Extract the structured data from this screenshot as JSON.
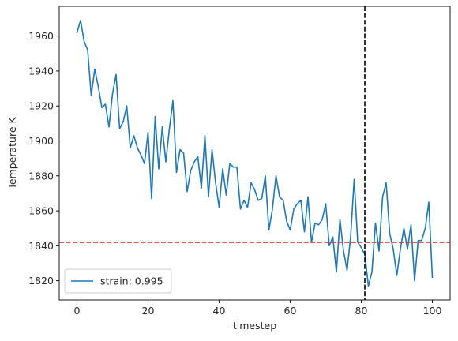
{
  "chart_data": {
    "type": "line",
    "xlabel": "timestep",
    "ylabel": "Temperature K",
    "xlim": [
      -5,
      105
    ],
    "ylim": [
      1809,
      1977
    ],
    "x_ticks": [
      0,
      20,
      40,
      60,
      80,
      100
    ],
    "y_ticks": [
      1820,
      1840,
      1860,
      1880,
      1900,
      1920,
      1940,
      1960
    ],
    "grid": false,
    "legend_position": "lower-left",
    "series": [
      {
        "name": "strain: 0.995",
        "color": "#1f77b4",
        "x": [
          0,
          1,
          2,
          3,
          4,
          5,
          6,
          7,
          8,
          9,
          10,
          11,
          12,
          13,
          14,
          15,
          16,
          17,
          18,
          19,
          20,
          21,
          22,
          23,
          24,
          25,
          26,
          27,
          28,
          29,
          30,
          31,
          32,
          33,
          34,
          35,
          36,
          37,
          38,
          39,
          40,
          41,
          42,
          43,
          44,
          45,
          46,
          47,
          48,
          49,
          50,
          51,
          52,
          53,
          54,
          55,
          56,
          57,
          58,
          59,
          60,
          61,
          62,
          63,
          64,
          65,
          66,
          67,
          68,
          69,
          70,
          71,
          72,
          73,
          74,
          75,
          76,
          77,
          78,
          79,
          80,
          81,
          82,
          83,
          84,
          85,
          86,
          87,
          88,
          89,
          90,
          91,
          92,
          93,
          94,
          95,
          96,
          97,
          98,
          99,
          100
        ],
        "y": [
          1962,
          1969,
          1957,
          1952,
          1926,
          1941,
          1931,
          1919,
          1921,
          1908,
          1927,
          1938,
          1907,
          1911,
          1920,
          1896,
          1903,
          1896,
          1892,
          1887,
          1905,
          1867,
          1914,
          1884,
          1908,
          1888,
          1907,
          1923,
          1882,
          1895,
          1893,
          1871,
          1883,
          1888,
          1891,
          1873,
          1903,
          1868,
          1895,
          1876,
          1862,
          1884,
          1869,
          1887,
          1885,
          1885,
          1861,
          1866,
          1862,
          1876,
          1872,
          1866,
          1867,
          1880,
          1849,
          1861,
          1880,
          1868,
          1866,
          1854,
          1849,
          1861,
          1864,
          1866,
          1848,
          1868,
          1842,
          1853,
          1852,
          1855,
          1864,
          1840,
          1845,
          1825,
          1855,
          1837,
          1826,
          1845,
          1878,
          1842,
          1839,
          1835,
          1817,
          1825,
          1853,
          1837,
          1868,
          1876,
          1847,
          1838,
          1823,
          1838,
          1850,
          1838,
          1852,
          1820,
          1843,
          1843,
          1850,
          1865,
          1822
        ]
      }
    ],
    "reference_lines": [
      {
        "orientation": "horizontal",
        "value": 1842,
        "color": "#d62728",
        "style": "dashed"
      },
      {
        "orientation": "vertical",
        "value": 81,
        "color": "#000000",
        "style": "dashed"
      }
    ]
  }
}
